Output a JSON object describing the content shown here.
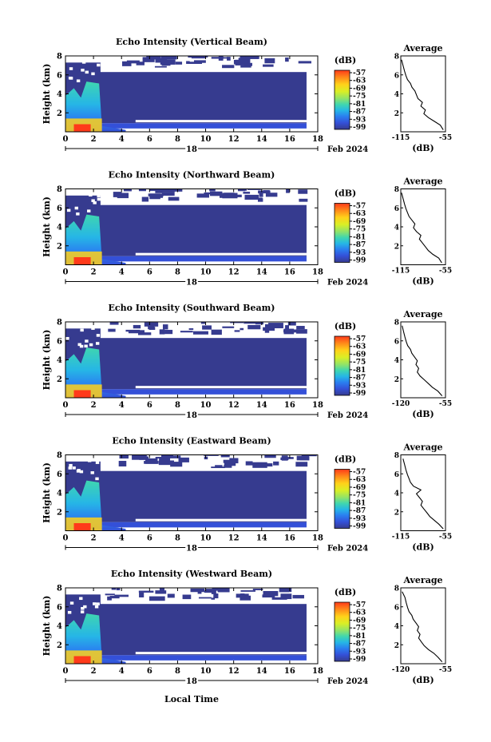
{
  "figure": {
    "xlabel": "Local Time",
    "date_label": "Feb 2024",
    "day_label": "18"
  },
  "chart_data": [
    {
      "type": "heatmap",
      "title": "Echo Intensity (Vertical Beam)",
      "ylabel": "Height (km)",
      "x_ticks": [
        "0",
        "2",
        "4",
        "6",
        "8",
        "10",
        "12",
        "14",
        "16",
        "18"
      ],
      "y_ticks": [
        "2",
        "4",
        "6",
        "8"
      ],
      "xlim": [
        0,
        18
      ],
      "ylim": [
        0,
        8
      ],
      "colorbar": {
        "unit": "(dB)",
        "ticks": [
          "-57",
          "-63",
          "-69",
          "-75",
          "-81",
          "-87",
          "-93",
          "-99"
        ]
      },
      "average": {
        "title": "Average",
        "xlabel": "(dB)",
        "x_ticks": [
          "-115",
          "-55"
        ],
        "xlim": [
          -115,
          -55
        ],
        "profile": [
          [
            -58,
            0.2
          ],
          [
            -62,
            0.7
          ],
          [
            -70,
            1.1
          ],
          [
            -78,
            1.5
          ],
          [
            -84,
            1.9
          ],
          [
            -82,
            2.3
          ],
          [
            -88,
            2.7
          ],
          [
            -86,
            3.1
          ],
          [
            -92,
            3.5
          ],
          [
            -94,
            3.9
          ],
          [
            -96,
            4.3
          ],
          [
            -100,
            4.7
          ],
          [
            -102,
            5.1
          ],
          [
            -106,
            5.5
          ],
          [
            -108,
            5.9
          ],
          [
            -110,
            6.4
          ],
          [
            -112,
            7.0
          ],
          [
            -114,
            7.6
          ]
        ]
      }
    },
    {
      "type": "heatmap",
      "title": "Echo Intensity (Northward Beam)",
      "ylabel": "Height (km)",
      "x_ticks": [
        "0",
        "2",
        "4",
        "6",
        "8",
        "10",
        "12",
        "14",
        "16",
        "18"
      ],
      "y_ticks": [
        "2",
        "4",
        "6",
        "8"
      ],
      "xlim": [
        0,
        18
      ],
      "ylim": [
        0,
        8
      ],
      "colorbar": {
        "unit": "(dB)",
        "ticks": [
          "-57",
          "-63",
          "-69",
          "-75",
          "-81",
          "-87",
          "-93",
          "-99"
        ]
      },
      "average": {
        "title": "Average",
        "xlabel": "(dB)",
        "x_ticks": [
          "-115",
          "-55"
        ],
        "xlim": [
          -115,
          -55
        ],
        "profile": [
          [
            -60,
            0.2
          ],
          [
            -64,
            0.7
          ],
          [
            -72,
            1.1
          ],
          [
            -78,
            1.5
          ],
          [
            -82,
            1.9
          ],
          [
            -86,
            2.3
          ],
          [
            -90,
            2.7
          ],
          [
            -88,
            3.1
          ],
          [
            -94,
            3.5
          ],
          [
            -98,
            3.9
          ],
          [
            -96,
            4.3
          ],
          [
            -100,
            4.7
          ],
          [
            -104,
            5.1
          ],
          [
            -106,
            5.5
          ],
          [
            -108,
            5.9
          ],
          [
            -110,
            6.4
          ],
          [
            -112,
            7.0
          ],
          [
            -114,
            7.6
          ]
        ]
      }
    },
    {
      "type": "heatmap",
      "title": "Echo Intensity (Southward Beam)",
      "ylabel": "Height (km)",
      "x_ticks": [
        "0",
        "2",
        "4",
        "6",
        "8",
        "10",
        "12",
        "14",
        "16",
        "18"
      ],
      "y_ticks": [
        "2",
        "4",
        "6",
        "8"
      ],
      "xlim": [
        0,
        18
      ],
      "ylim": [
        0,
        8
      ],
      "colorbar": {
        "unit": "(dB)",
        "ticks": [
          "-57",
          "-63",
          "-69",
          "-75",
          "-81",
          "-87",
          "-93",
          "-99"
        ]
      },
      "average": {
        "title": "Average",
        "xlabel": "(dB)",
        "x_ticks": [
          "-120",
          "-55"
        ],
        "xlim": [
          -120,
          -55
        ],
        "profile": [
          [
            -60,
            0.2
          ],
          [
            -66,
            0.7
          ],
          [
            -74,
            1.1
          ],
          [
            -80,
            1.5
          ],
          [
            -86,
            1.9
          ],
          [
            -92,
            2.3
          ],
          [
            -96,
            2.7
          ],
          [
            -94,
            3.1
          ],
          [
            -98,
            3.5
          ],
          [
            -96,
            3.9
          ],
          [
            -100,
            4.3
          ],
          [
            -104,
            4.7
          ],
          [
            -106,
            5.1
          ],
          [
            -110,
            5.5
          ],
          [
            -112,
            5.9
          ],
          [
            -114,
            6.4
          ],
          [
            -116,
            7.0
          ],
          [
            -118,
            7.6
          ]
        ]
      }
    },
    {
      "type": "heatmap",
      "title": "Echo Intensity (Eastward Beam)",
      "ylabel": "Height (km)",
      "x_ticks": [
        "0",
        "2",
        "4",
        "6",
        "8",
        "10",
        "12",
        "14",
        "16",
        "18"
      ],
      "y_ticks": [
        "2",
        "4",
        "6",
        "8"
      ],
      "xlim": [
        0,
        18
      ],
      "ylim": [
        0,
        8
      ],
      "colorbar": {
        "unit": "(dB)",
        "ticks": [
          "-57",
          "-63",
          "-69",
          "-75",
          "-81",
          "-87",
          "-93",
          "-99"
        ]
      },
      "average": {
        "title": "Average",
        "xlabel": "(dB)",
        "x_ticks": [
          "-115",
          "-55"
        ],
        "xlim": [
          -115,
          -55
        ],
        "profile": [
          [
            -58,
            0.2
          ],
          [
            -64,
            0.7
          ],
          [
            -70,
            1.1
          ],
          [
            -76,
            1.5
          ],
          [
            -80,
            1.9
          ],
          [
            -84,
            2.3
          ],
          [
            -88,
            2.7
          ],
          [
            -86,
            3.1
          ],
          [
            -90,
            3.5
          ],
          [
            -94,
            3.9
          ],
          [
            -88,
            4.3
          ],
          [
            -98,
            4.7
          ],
          [
            -102,
            5.1
          ],
          [
            -104,
            5.5
          ],
          [
            -106,
            5.9
          ],
          [
            -108,
            6.4
          ],
          [
            -110,
            7.0
          ],
          [
            -112,
            7.6
          ]
        ]
      }
    },
    {
      "type": "heatmap",
      "title": "Echo Intensity (Westward Beam)",
      "ylabel": "Height (km)",
      "x_ticks": [
        "0",
        "2",
        "4",
        "6",
        "8",
        "10",
        "12",
        "14",
        "16",
        "18"
      ],
      "y_ticks": [
        "2",
        "4",
        "6",
        "8"
      ],
      "xlim": [
        0,
        18
      ],
      "ylim": [
        0,
        8
      ],
      "colorbar": {
        "unit": "(dB)",
        "ticks": [
          "-57",
          "-63",
          "-69",
          "-75",
          "-81",
          "-87",
          "-93",
          "-99"
        ]
      },
      "average": {
        "title": "Average",
        "xlabel": "(dB)",
        "x_ticks": [
          "-120",
          "-55"
        ],
        "xlim": [
          -120,
          -55
        ],
        "profile": [
          [
            -60,
            0.2
          ],
          [
            -66,
            0.7
          ],
          [
            -72,
            1.1
          ],
          [
            -80,
            1.5
          ],
          [
            -86,
            1.9
          ],
          [
            -90,
            2.3
          ],
          [
            -94,
            2.7
          ],
          [
            -92,
            3.1
          ],
          [
            -96,
            3.5
          ],
          [
            -94,
            3.9
          ],
          [
            -98,
            4.3
          ],
          [
            -102,
            4.7
          ],
          [
            -104,
            5.1
          ],
          [
            -108,
            5.5
          ],
          [
            -110,
            5.9
          ],
          [
            -112,
            6.4
          ],
          [
            -114,
            7.0
          ],
          [
            -118,
            7.6
          ]
        ]
      }
    }
  ],
  "colors": {
    "colorbar": [
      "#ff3a1a",
      "#ff8a1a",
      "#ffd21a",
      "#d9ef26",
      "#8fe36a",
      "#3fd6b0",
      "#26b6e6",
      "#2a7ff0",
      "#3450d8",
      "#363b8f"
    ],
    "background_echo": "#363b8f",
    "axis": "#000000"
  }
}
